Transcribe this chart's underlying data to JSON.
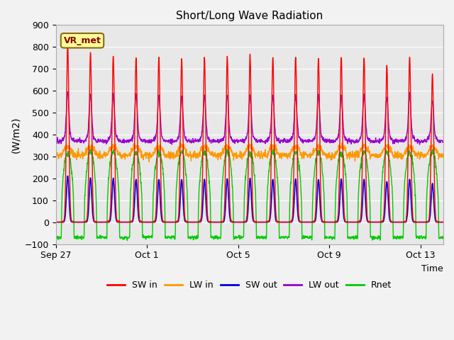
{
  "title": "Short/Long Wave Radiation",
  "ylabel": "(W/m2)",
  "xlabel": "Time",
  "ylim": [
    -100,
    900
  ],
  "yticks": [
    -100,
    0,
    100,
    200,
    300,
    400,
    500,
    600,
    700,
    800,
    900
  ],
  "xtick_labels": [
    "Sep 27",
    "Oct 1",
    "Oct 5",
    "Oct 9",
    "Oct 13"
  ],
  "xtick_positions": [
    0,
    4,
    8,
    12,
    16
  ],
  "fig_bg": "#f2f2f2",
  "plot_bg": "#e8e8e8",
  "series": {
    "SW in": {
      "color": "#ff0000",
      "lw": 1.0
    },
    "LW in": {
      "color": "#ff9900",
      "lw": 1.0
    },
    "SW out": {
      "color": "#0000dd",
      "lw": 1.2
    },
    "LW out": {
      "color": "#9900cc",
      "lw": 1.0
    },
    "Rnet": {
      "color": "#00cc00",
      "lw": 1.0
    }
  },
  "legend_items": [
    "SW in",
    "LW in",
    "SW out",
    "LW out",
    "Rnet"
  ],
  "legend_colors": [
    "#ff0000",
    "#ff9900",
    "#0000dd",
    "#9900cc",
    "#00cc00"
  ],
  "annotation_text": "VR_met",
  "n_days": 17,
  "dt_hours": 0.25,
  "sw_peaks": [
    810,
    775,
    760,
    750,
    750,
    745,
    750,
    755,
    760,
    750,
    755,
    750,
    755,
    750,
    715,
    755,
    675
  ],
  "lw_in_night": 305,
  "lw_in_noise": 8,
  "lw_in_day_bump": 40,
  "lw_out_night": 370,
  "lw_out_noise": 5,
  "lw_out_day_bump": 20,
  "lw_out_spike_factor": 0.25,
  "sw_out_max": 200,
  "rnet_day_max": 320,
  "rnet_night": -70,
  "rnet_noise": 8,
  "day_start": 6.0,
  "day_end": 19.0,
  "sw_sigma": 1.3
}
